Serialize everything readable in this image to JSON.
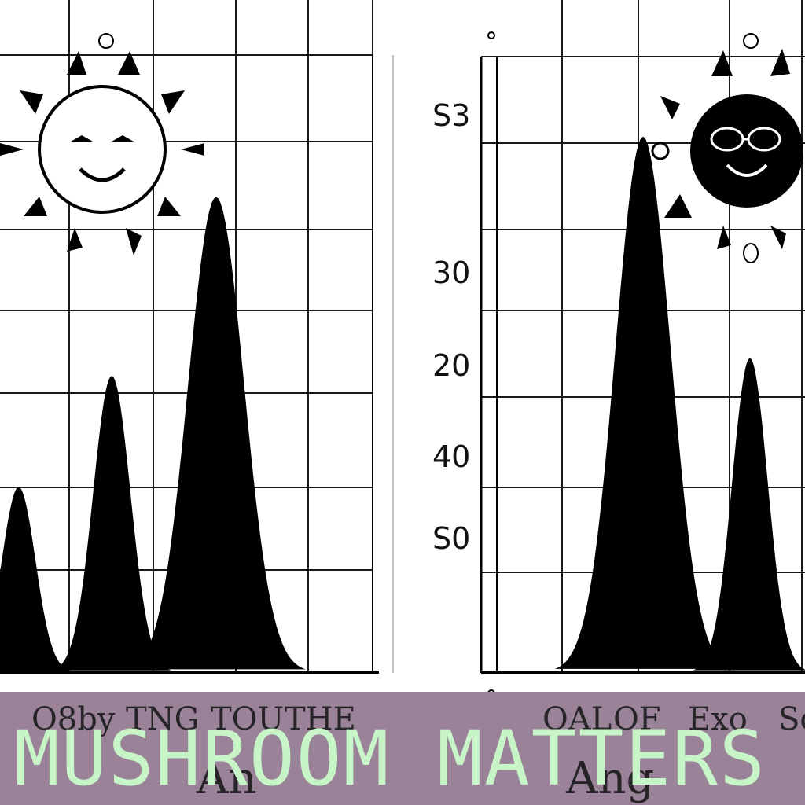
{
  "banner": {
    "title": "MUSHROOM MATTERS",
    "scrawl_left": [
      "Q8by",
      "TNG",
      "TOU",
      "THE"
    ],
    "scrawl_right": [
      "OAL",
      "OF",
      "Exo",
      "So"
    ],
    "scrawl_bottom": [
      "An",
      "Ang"
    ]
  },
  "colors": {
    "banner_bg": "#9a8299",
    "banner_text": "#c8f5c8",
    "ink": "#000000",
    "grid": "#1a1a1a"
  },
  "icons": [
    "sun-smiling-icon",
    "sun-sunglasses-icon"
  ],
  "chart_data": [
    {
      "type": "area",
      "title": "",
      "xlabel": "",
      "ylabel": "",
      "grid": true,
      "series": [
        {
          "peaks": [
            {
              "center": 0.05,
              "height": 0.3,
              "width": 0.045
            },
            {
              "center": 0.3,
              "height": 0.48,
              "width": 0.05
            },
            {
              "center": 0.58,
              "height": 0.77,
              "width": 0.075
            }
          ]
        }
      ]
    },
    {
      "type": "area",
      "title": "",
      "xlabel": "",
      "ylabel": "",
      "grid": true,
      "ytick_labels": [
        "S3",
        "30",
        "20",
        "40",
        "S0"
      ],
      "series": [
        {
          "peaks": [
            {
              "center": 0.5,
              "height": 0.87,
              "width": 0.085
            },
            {
              "center": 0.83,
              "height": 0.51,
              "width": 0.055
            }
          ]
        }
      ]
    }
  ]
}
